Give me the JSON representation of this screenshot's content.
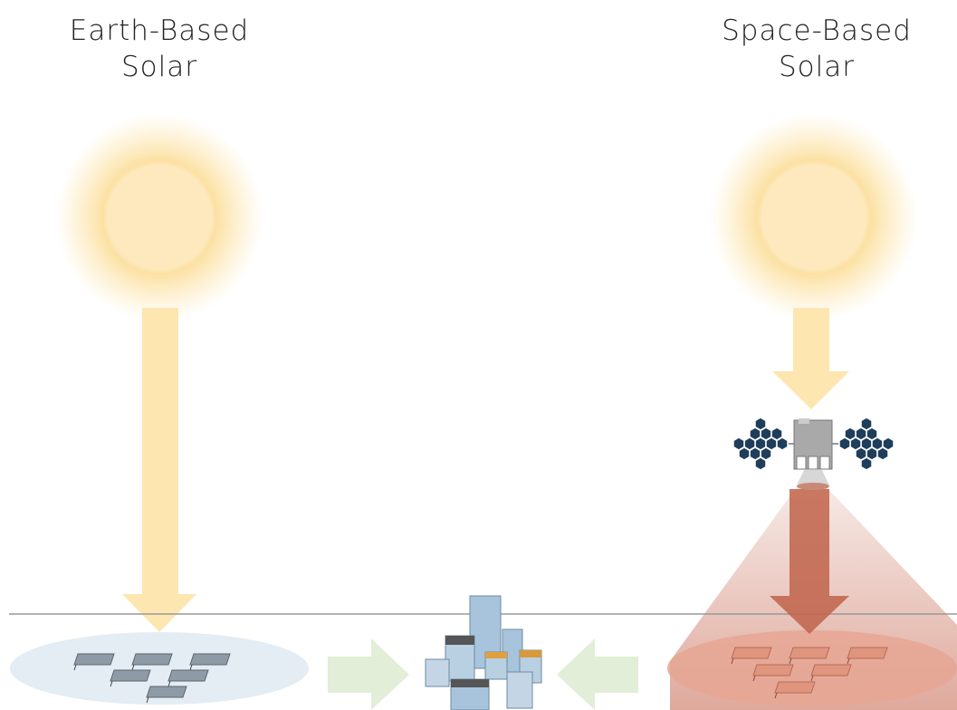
{
  "earth_label": [
    "Earth-Based",
    "Solar"
  ],
  "space_label": [
    "Space-Based",
    "Solar"
  ]
}
